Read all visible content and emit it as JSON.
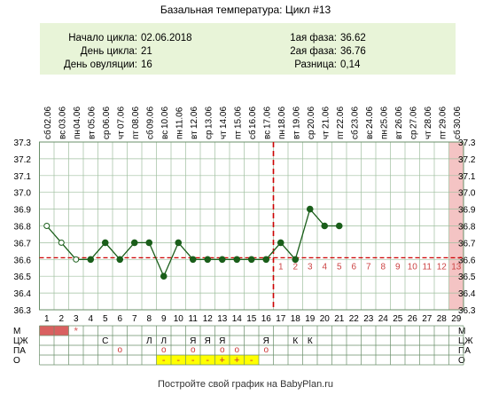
{
  "title": "Базальная температура: Цикл #13",
  "info": {
    "left": [
      {
        "label": "Начало цикла:",
        "value": "02.06.2018"
      },
      {
        "label": "День цикла:",
        "value": "21"
      },
      {
        "label": "День овуляции:",
        "value": "16"
      }
    ],
    "right": [
      {
        "label": "1ая фаза:",
        "value": "36.62"
      },
      {
        "label": "2ая фаза:",
        "value": "36.76"
      },
      {
        "label": "Разница:",
        "value": "0,14"
      }
    ]
  },
  "footer": "Постройте свой график на BabyPlan.ru",
  "colors": {
    "info_bg": "#e8f4d8",
    "line": "#1a5e1a",
    "point": "#1a5e1a",
    "coverline": "#cc0000",
    "ovulation_line": "#cc0000",
    "phase_numbers": "#cc4444",
    "future_days_shade": "#f4c4c4",
    "menstruation": "#d96060",
    "mucus_bar": "#ffff00",
    "grid": "#9fbf9f"
  },
  "chart_data": {
    "type": "line",
    "title": "Базальная температура: Цикл #13",
    "x": [
      1,
      2,
      3,
      4,
      5,
      6,
      7,
      8,
      9,
      10,
      11,
      12,
      13,
      14,
      15,
      16,
      17,
      18,
      19,
      20,
      21
    ],
    "values": [
      36.8,
      36.7,
      36.6,
      36.6,
      36.7,
      36.6,
      36.7,
      36.7,
      36.5,
      36.7,
      36.6,
      36.6,
      36.6,
      36.6,
      36.6,
      36.6,
      36.7,
      36.6,
      36.9,
      36.8,
      36.8
    ],
    "open_points_days": [
      1,
      2,
      3
    ],
    "days": [
      1,
      2,
      3,
      4,
      5,
      6,
      7,
      8,
      9,
      10,
      11,
      12,
      13,
      14,
      15,
      16,
      17,
      18,
      19,
      20,
      21,
      22,
      23,
      24,
      25,
      26,
      27,
      28,
      29
    ],
    "dates": [
      "02.06",
      "03.06",
      "04.06",
      "05.06",
      "06.06",
      "07.06",
      "08.06",
      "09.06",
      "10.06",
      "11.06",
      "12.06",
      "13.06",
      "14.06",
      "15.06",
      "16.06",
      "17.06",
      "18.06",
      "19.06",
      "20.06",
      "21.06",
      "22.06",
      "23.06",
      "24.06",
      "25.06",
      "26.06",
      "27.06",
      "28.06",
      "29.06",
      "30.06"
    ],
    "weekdays": [
      "сб",
      "вс",
      "пн",
      "вт",
      "ср",
      "чт",
      "пт",
      "сб",
      "вс",
      "пн",
      "вт",
      "ср",
      "чт",
      "пт",
      "сб",
      "вс",
      "пн",
      "вт",
      "ср",
      "чт",
      "пт",
      "сб",
      "вс",
      "пн",
      "вт",
      "ср",
      "чт",
      "пт",
      "сб"
    ],
    "y_ticks": [
      "37.3",
      "37.2",
      "37.1",
      "37.0",
      "36.9",
      "36.8",
      "36.7",
      "36.6",
      "36.5",
      "36.4",
      "36.3"
    ],
    "ylim": [
      36.3,
      37.3
    ],
    "coverline": 36.61,
    "ovulation_day": 16,
    "luteal_phase_numbers": [
      "1",
      "2",
      "3",
      "4",
      "5",
      "6",
      "7",
      "8",
      "9",
      "10",
      "11",
      "12",
      "13"
    ],
    "luteal_phase_start_day": 17,
    "shaded_day": 29,
    "grid": true
  },
  "bottom_rows": {
    "labels": [
      "М",
      "ЦЖ",
      "ПА",
      "О"
    ],
    "menstruation_days": [
      1,
      2
    ],
    "star": {
      "day": 3,
      "text": "*"
    },
    "mucus": [
      {
        "day": 5,
        "text": "С"
      },
      {
        "day": 8,
        "text": "Л"
      },
      {
        "day": 9,
        "text": "Л"
      },
      {
        "day": 11,
        "text": "Я"
      },
      {
        "day": 12,
        "text": "Я"
      },
      {
        "day": 13,
        "text": "Я"
      },
      {
        "day": 16,
        "text": "Я"
      },
      {
        "day": 18,
        "text": "К"
      },
      {
        "day": 19,
        "text": "К"
      }
    ],
    "intercourse": [
      {
        "day": 6,
        "text": "о"
      },
      {
        "day": 9,
        "text": "о"
      },
      {
        "day": 11,
        "text": "о"
      },
      {
        "day": 13,
        "text": "о"
      },
      {
        "day": 14,
        "text": "о"
      },
      {
        "day": 16,
        "text": "о"
      }
    ],
    "ovulation_tests": [
      {
        "day": 9,
        "text": "-"
      },
      {
        "day": 10,
        "text": "-"
      },
      {
        "day": 11,
        "text": "-"
      },
      {
        "day": 12,
        "text": "-"
      },
      {
        "day": 13,
        "text": "+"
      },
      {
        "day": 14,
        "text": "+"
      },
      {
        "day": 15,
        "text": "-"
      }
    ]
  }
}
